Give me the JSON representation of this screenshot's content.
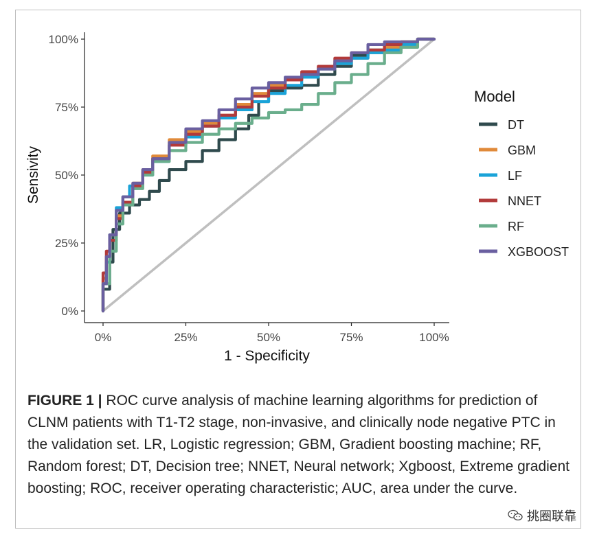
{
  "chart_data": {
    "type": "line",
    "xlabel": "1 - Specificity",
    "ylabel": "Sensivity",
    "xlim": [
      0,
      1
    ],
    "ylim": [
      0,
      1
    ],
    "x_ticks": [
      "0%",
      "25%",
      "50%",
      "75%",
      "100%"
    ],
    "y_ticks": [
      "0%",
      "25%",
      "50%",
      "75%",
      "100%"
    ],
    "legend": {
      "title": "Model",
      "position": "right"
    },
    "reference_line": {
      "from": [
        0,
        0
      ],
      "to": [
        1,
        1
      ],
      "color": "#bfbfbf"
    },
    "series": [
      {
        "name": "DT",
        "color": "#2f4a4d",
        "points": [
          [
            0,
            0
          ],
          [
            0.02,
            0.08
          ],
          [
            0.03,
            0.18
          ],
          [
            0.05,
            0.3
          ],
          [
            0.08,
            0.36
          ],
          [
            0.11,
            0.39
          ],
          [
            0.14,
            0.41
          ],
          [
            0.17,
            0.44
          ],
          [
            0.2,
            0.48
          ],
          [
            0.25,
            0.52
          ],
          [
            0.3,
            0.55
          ],
          [
            0.35,
            0.59
          ],
          [
            0.4,
            0.63
          ],
          [
            0.44,
            0.67
          ],
          [
            0.47,
            0.72
          ],
          [
            0.5,
            0.77
          ],
          [
            0.55,
            0.81
          ],
          [
            0.6,
            0.82
          ],
          [
            0.65,
            0.83
          ],
          [
            0.7,
            0.87
          ],
          [
            0.75,
            0.9
          ],
          [
            0.8,
            0.94
          ],
          [
            0.85,
            0.96
          ],
          [
            0.9,
            0.98
          ],
          [
            0.95,
            0.99
          ],
          [
            1,
            1
          ]
        ]
      },
      {
        "name": "GBM",
        "color": "#e08a3a",
        "points": [
          [
            0,
            0
          ],
          [
            0.01,
            0.12
          ],
          [
            0.02,
            0.2
          ],
          [
            0.04,
            0.28
          ],
          [
            0.06,
            0.35
          ],
          [
            0.09,
            0.42
          ],
          [
            0.12,
            0.47
          ],
          [
            0.15,
            0.52
          ],
          [
            0.2,
            0.57
          ],
          [
            0.25,
            0.63
          ],
          [
            0.3,
            0.66
          ],
          [
            0.35,
            0.69
          ],
          [
            0.4,
            0.72
          ],
          [
            0.45,
            0.76
          ],
          [
            0.5,
            0.8
          ],
          [
            0.55,
            0.83
          ],
          [
            0.6,
            0.85
          ],
          [
            0.65,
            0.87
          ],
          [
            0.7,
            0.89
          ],
          [
            0.75,
            0.91
          ],
          [
            0.8,
            0.93
          ],
          [
            0.85,
            0.95
          ],
          [
            0.9,
            0.97
          ],
          [
            0.95,
            0.99
          ],
          [
            1,
            1
          ]
        ]
      },
      {
        "name": "LF",
        "color": "#1aa3d8",
        "points": [
          [
            0,
            0
          ],
          [
            0.01,
            0.1
          ],
          [
            0.02,
            0.18
          ],
          [
            0.04,
            0.28
          ],
          [
            0.06,
            0.38
          ],
          [
            0.08,
            0.42
          ],
          [
            0.12,
            0.46
          ],
          [
            0.15,
            0.5
          ],
          [
            0.2,
            0.55
          ],
          [
            0.25,
            0.61
          ],
          [
            0.3,
            0.64
          ],
          [
            0.35,
            0.68
          ],
          [
            0.4,
            0.71
          ],
          [
            0.45,
            0.74
          ],
          [
            0.5,
            0.77
          ],
          [
            0.55,
            0.8
          ],
          [
            0.6,
            0.83
          ],
          [
            0.65,
            0.86
          ],
          [
            0.7,
            0.89
          ],
          [
            0.75,
            0.91
          ],
          [
            0.8,
            0.93
          ],
          [
            0.85,
            0.95
          ],
          [
            0.9,
            0.96
          ],
          [
            0.95,
            0.98
          ],
          [
            1,
            1
          ]
        ]
      },
      {
        "name": "NNET",
        "color": "#b23a3a",
        "points": [
          [
            0,
            0
          ],
          [
            0.01,
            0.14
          ],
          [
            0.02,
            0.22
          ],
          [
            0.04,
            0.26
          ],
          [
            0.06,
            0.34
          ],
          [
            0.09,
            0.4
          ],
          [
            0.12,
            0.46
          ],
          [
            0.15,
            0.51
          ],
          [
            0.2,
            0.56
          ],
          [
            0.25,
            0.61
          ],
          [
            0.3,
            0.65
          ],
          [
            0.35,
            0.68
          ],
          [
            0.4,
            0.72
          ],
          [
            0.45,
            0.75
          ],
          [
            0.5,
            0.79
          ],
          [
            0.55,
            0.82
          ],
          [
            0.6,
            0.85
          ],
          [
            0.65,
            0.88
          ],
          [
            0.7,
            0.9
          ],
          [
            0.75,
            0.93
          ],
          [
            0.8,
            0.95
          ],
          [
            0.85,
            0.96
          ],
          [
            0.9,
            0.98
          ],
          [
            0.95,
            0.99
          ],
          [
            1,
            1
          ]
        ]
      },
      {
        "name": "RF",
        "color": "#6aae8c",
        "points": [
          [
            0,
            0
          ],
          [
            0.02,
            0.1
          ],
          [
            0.04,
            0.22
          ],
          [
            0.06,
            0.32
          ],
          [
            0.09,
            0.39
          ],
          [
            0.12,
            0.45
          ],
          [
            0.15,
            0.5
          ],
          [
            0.2,
            0.55
          ],
          [
            0.25,
            0.59
          ],
          [
            0.3,
            0.62
          ],
          [
            0.35,
            0.65
          ],
          [
            0.4,
            0.67
          ],
          [
            0.45,
            0.69
          ],
          [
            0.5,
            0.71
          ],
          [
            0.55,
            0.73
          ],
          [
            0.6,
            0.74
          ],
          [
            0.65,
            0.76
          ],
          [
            0.7,
            0.8
          ],
          [
            0.75,
            0.84
          ],
          [
            0.8,
            0.87
          ],
          [
            0.85,
            0.91
          ],
          [
            0.9,
            0.95
          ],
          [
            0.95,
            0.97
          ],
          [
            1,
            1
          ]
        ]
      },
      {
        "name": "XGBOOST",
        "color": "#6a5fa0",
        "points": [
          [
            0,
            0
          ],
          [
            0.01,
            0.1
          ],
          [
            0.02,
            0.2
          ],
          [
            0.04,
            0.28
          ],
          [
            0.06,
            0.37
          ],
          [
            0.09,
            0.42
          ],
          [
            0.12,
            0.47
          ],
          [
            0.15,
            0.52
          ],
          [
            0.2,
            0.56
          ],
          [
            0.25,
            0.62
          ],
          [
            0.3,
            0.67
          ],
          [
            0.35,
            0.7
          ],
          [
            0.4,
            0.74
          ],
          [
            0.45,
            0.78
          ],
          [
            0.5,
            0.82
          ],
          [
            0.55,
            0.84
          ],
          [
            0.6,
            0.86
          ],
          [
            0.65,
            0.87
          ],
          [
            0.7,
            0.89
          ],
          [
            0.75,
            0.92
          ],
          [
            0.8,
            0.95
          ],
          [
            0.85,
            0.98
          ],
          [
            0.9,
            0.99
          ],
          [
            0.95,
            0.99
          ],
          [
            1,
            1
          ]
        ]
      }
    ]
  },
  "caption": {
    "label": "FIGURE 1 |",
    "text": " ROC curve analysis of machine learning algorithms for prediction of CLNM patients with T1-T2 stage, non-invasive, and clinically node negative PTC in the validation set. LR, Logistic regression; GBM, Gradient boosting machine; RF, Random forest; DT, Decision tree; NNET, Neural network; Xgboost, Extreme gradient boosting; ROC, receiver operating characteristic; AUC, area under the curve."
  },
  "watermark": {
    "text": "挑圈联靠"
  }
}
